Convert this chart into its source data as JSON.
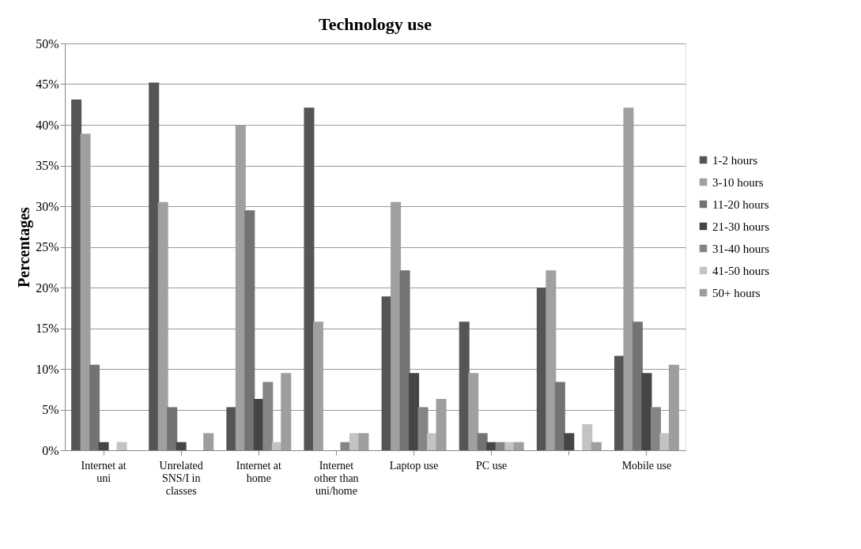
{
  "chart_data": {
    "type": "bar",
    "title": "Technology use",
    "ylabel": "Percentages",
    "categories": [
      "Internet at uni",
      "Unrelated SNS/I in classes",
      "Internet at home",
      "Internet other than uni/home",
      "Laptop use",
      "PC use",
      null,
      "Mobile use"
    ],
    "series": [
      {
        "name": "1-2 hours",
        "color": "#555555",
        "values": [
          43.1,
          45.2,
          5.3,
          42.1,
          18.9,
          15.8,
          20.0,
          11.6
        ]
      },
      {
        "name": "3-10 hours",
        "color": "#a0a0a0",
        "values": [
          38.9,
          30.5,
          40.0,
          15.8,
          30.5,
          9.5,
          22.1,
          42.1
        ]
      },
      {
        "name": "11-20 hours",
        "color": "#737373",
        "values": [
          10.5,
          5.3,
          29.5,
          0,
          22.1,
          2.1,
          8.4,
          15.8
        ]
      },
      {
        "name": "21-30 hours",
        "color": "#454545",
        "values": [
          1.0,
          1.0,
          6.3,
          0,
          9.5,
          1.0,
          2.1,
          9.5
        ]
      },
      {
        "name": "31-40 hours",
        "color": "#858585",
        "values": [
          0,
          0,
          8.4,
          1.0,
          5.3,
          1.0,
          0,
          5.3
        ]
      },
      {
        "name": "41-50 hours",
        "color": "#c3c3c3",
        "values": [
          1.0,
          0,
          1.0,
          2.1,
          2.1,
          1.0,
          3.2,
          2.1
        ]
      },
      {
        "name": "50+ hours",
        "color": "#9e9e9e",
        "values": [
          0,
          2.1,
          9.5,
          2.1,
          6.3,
          1.0,
          1.0,
          10.5
        ]
      }
    ],
    "ylim": [
      0,
      50
    ],
    "yticks": [
      {
        "value": 0,
        "label": "0%"
      },
      {
        "value": 5,
        "label": "5%"
      },
      {
        "value": 10,
        "label": "10%"
      },
      {
        "value": 15,
        "label": "15%"
      },
      {
        "value": 20,
        "label": "20%"
      },
      {
        "value": 25,
        "label": "25%"
      },
      {
        "value": 30,
        "label": "30%"
      },
      {
        "value": 35,
        "label": "35%"
      },
      {
        "value": 40,
        "label": "40%"
      },
      {
        "value": 45,
        "label": "45%"
      },
      {
        "value": 50,
        "label": "50%"
      }
    ],
    "grid": "y",
    "legend": "right"
  }
}
